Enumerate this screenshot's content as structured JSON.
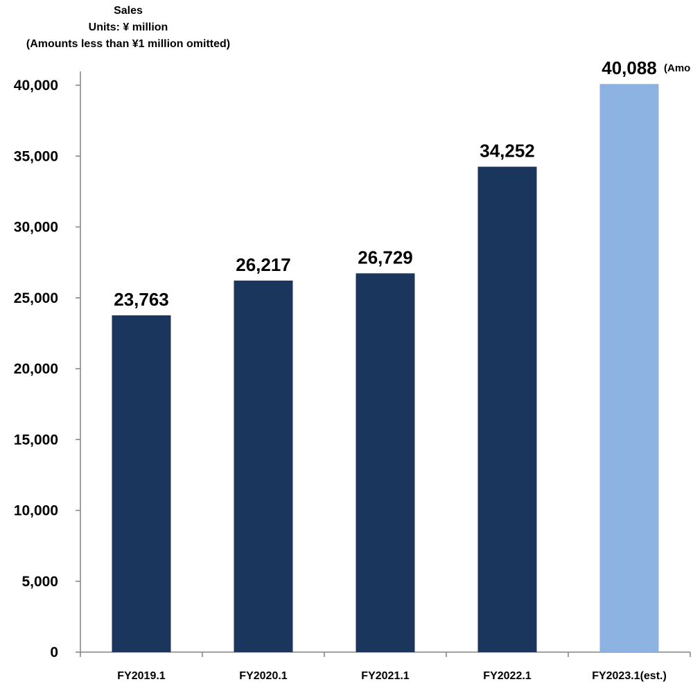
{
  "header": {
    "title": "Sales",
    "units": "Units: ¥ million",
    "note": "(Amounts less than ¥1 million omitted)"
  },
  "corner_note": "(Amo",
  "colors": {
    "actual": "#1b365d",
    "estimate": "#8db3e2",
    "axis": "#808080"
  },
  "chart_data": {
    "type": "bar",
    "title": "Sales",
    "ylabel": "Units: ¥ million",
    "categories": [
      "FY2019.1",
      "FY2020.1",
      "FY2021.1",
      "FY2022.1",
      "FY2023.1(est.)"
    ],
    "values": [
      23763,
      26217,
      26729,
      34252,
      40088
    ],
    "value_labels": [
      "23,763",
      "26,217",
      "26,729",
      "34,252",
      "40,088"
    ],
    "estimate_flags": [
      false,
      false,
      false,
      false,
      true
    ],
    "yticks": [
      0,
      5000,
      10000,
      15000,
      20000,
      25000,
      30000,
      35000,
      40000
    ],
    "ytick_labels": [
      "0",
      "5,000",
      "10,000",
      "15,000",
      "20,000",
      "25,000",
      "30,000",
      "35,000",
      "40,000"
    ],
    "ylim": [
      0,
      40000
    ],
    "grid": false,
    "legend": "none"
  }
}
